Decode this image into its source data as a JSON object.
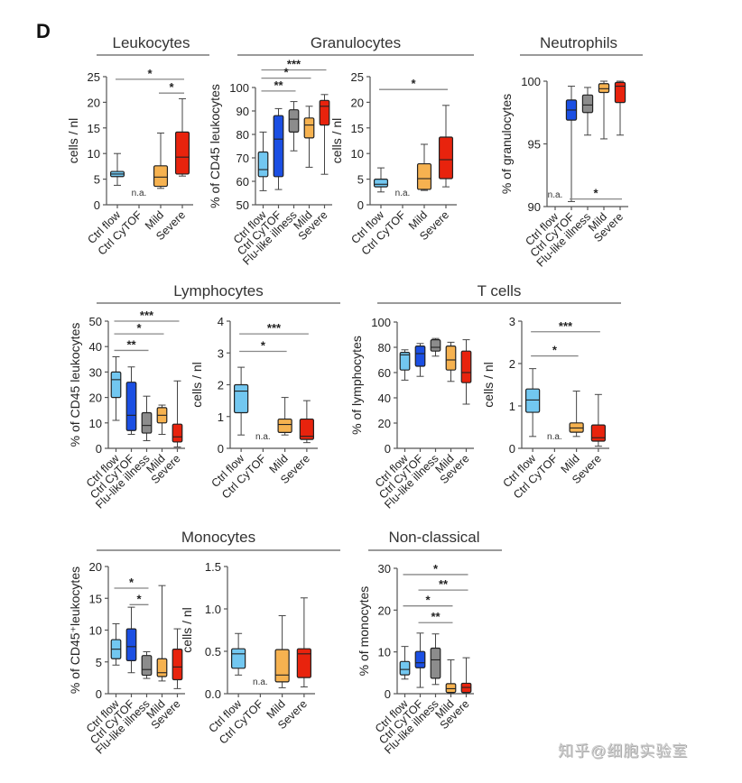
{
  "panel_label": "D",
  "watermark": "知乎@细胞实验室",
  "colors": {
    "Ctrl flow": "#72c7f0",
    "Ctrl CyTOF": "#1b4fe3",
    "Flu-like illness": "#8c8c8c",
    "Mild": "#f6b250",
    "Severe": "#e8230d",
    "axis": "#555555",
    "sig_line": "#888888",
    "rule": "#9a9a9a"
  },
  "groups": [
    {
      "title": "Leukocytes"
    },
    {
      "title": "Granulocytes"
    },
    {
      "title": "Neutrophils"
    },
    {
      "title": "Lymphocytes"
    },
    {
      "title": "T cells"
    },
    {
      "title": "Monocytes"
    },
    {
      "title": "Non-classical"
    }
  ],
  "chart_data": [
    {
      "id": "leuk-count",
      "group": "Leukocytes",
      "type": "box",
      "ylabel": "cells / nl",
      "ylim": [
        0,
        25
      ],
      "yticks": [
        "0",
        "5",
        "10",
        "15",
        "20",
        "25"
      ],
      "categories": [
        "Ctrl flow",
        "Ctrl CyTOF",
        "Mild",
        "Severe"
      ],
      "boxes": [
        {
          "cat": "Ctrl flow",
          "min": 3.8,
          "q1": 5.5,
          "median": 6.0,
          "q3": 6.5,
          "max": 10.0
        },
        {
          "cat": "Ctrl CyTOF",
          "na": "n.a."
        },
        {
          "cat": "Mild",
          "min": 3.2,
          "q1": 3.6,
          "median": 5.4,
          "q3": 7.6,
          "max": 14.0
        },
        {
          "cat": "Severe",
          "min": 5.6,
          "q1": 6.0,
          "median": 9.3,
          "q3": 14.2,
          "max": 20.7
        }
      ],
      "significance": [
        {
          "from": "Ctrl flow",
          "to": "Severe",
          "y": 24.5,
          "label": "*"
        },
        {
          "from": "Mild",
          "to": "Severe",
          "y": 21.8,
          "label": "*"
        }
      ]
    },
    {
      "id": "gran-pct",
      "group": "Granulocytes",
      "type": "box",
      "ylabel": "% of CD45 leukocytes",
      "ylim": [
        50,
        100
      ],
      "yticks": [
        "50",
        "60",
        "70",
        "80",
        "90",
        "100"
      ],
      "categories": [
        "Ctrl flow",
        "Ctrl CyTOF",
        "Flu-like illness",
        "Mild",
        "Severe"
      ],
      "boxes": [
        {
          "cat": "Ctrl flow",
          "min": 56,
          "q1": 62,
          "median": 65,
          "q3": 72.5,
          "max": 81
        },
        {
          "cat": "Ctrl CyTOF",
          "min": 56.5,
          "q1": 62,
          "median": 78,
          "q3": 88,
          "max": 91
        },
        {
          "cat": "Flu-like illness",
          "min": 73,
          "q1": 81,
          "median": 86.5,
          "q3": 90.5,
          "max": 94
        },
        {
          "cat": "Mild",
          "min": 66,
          "q1": 78.5,
          "median": 84,
          "q3": 87,
          "max": 92
        },
        {
          "cat": "Severe",
          "min": 63,
          "q1": 84,
          "median": 92,
          "q3": 94.5,
          "max": 97
        }
      ],
      "significance": [
        {
          "from": "Ctrl flow",
          "to": "Severe",
          "y": 107.5,
          "label": "***"
        },
        {
          "from": "Ctrl flow",
          "to": "Mild",
          "y": 104,
          "label": "*"
        },
        {
          "from": "Ctrl flow",
          "to": "Flu-like illness",
          "y": 98.5,
          "label": "**"
        }
      ]
    },
    {
      "id": "gran-count",
      "group": "Granulocytes",
      "type": "box",
      "ylabel": "cells / nl",
      "ylim": [
        0,
        25
      ],
      "yticks": [
        "0",
        "5",
        "10",
        "15",
        "20",
        "25"
      ],
      "categories": [
        "Ctrl flow",
        "Ctrl CyTOF",
        "Mild",
        "Severe"
      ],
      "boxes": [
        {
          "cat": "Ctrl flow",
          "min": 2.5,
          "q1": 3.5,
          "median": 4.0,
          "q3": 5.0,
          "max": 7.2
        },
        {
          "cat": "Ctrl CyTOF",
          "na": "n.a."
        },
        {
          "cat": "Mild",
          "min": 2.8,
          "q1": 3.0,
          "median": 5.1,
          "q3": 8.0,
          "max": 11.8
        },
        {
          "cat": "Severe",
          "min": 3.5,
          "q1": 5.1,
          "median": 8.8,
          "q3": 13.2,
          "max": 19.4
        }
      ],
      "significance": [
        {
          "from": "Ctrl flow",
          "to": "Severe",
          "y": 22.5,
          "label": "*"
        }
      ]
    },
    {
      "id": "neut-pct",
      "group": "Neutrophils",
      "type": "box",
      "ylabel": "% of granulocytes",
      "ylim": [
        90,
        100
      ],
      "yticks": [
        "90",
        "95",
        "100"
      ],
      "categories": [
        "Ctrl flow",
        "Ctrl CyTOF",
        "Flu-like illness",
        "Mild",
        "Severe"
      ],
      "boxes": [
        {
          "cat": "Ctrl flow",
          "na": "n.a."
        },
        {
          "cat": "Ctrl CyTOF",
          "min": 90.4,
          "q1": 96.9,
          "median": 97.7,
          "q3": 98.5,
          "max": 99.6
        },
        {
          "cat": "Flu-like illness",
          "min": 95.7,
          "q1": 97.5,
          "median": 98.1,
          "q3": 98.9,
          "max": 99.5
        },
        {
          "cat": "Mild",
          "min": 95.4,
          "q1": 99.1,
          "median": 99.4,
          "q3": 99.8,
          "max": 100.0
        },
        {
          "cat": "Severe",
          "min": 95.7,
          "q1": 98.3,
          "median": 99.6,
          "q3": 99.9,
          "max": 100.0
        }
      ],
      "significance": [
        {
          "from": "Ctrl CyTOF",
          "to": "Severe",
          "y": 90.6,
          "label": "*",
          "below": true
        }
      ]
    },
    {
      "id": "lymph-pct",
      "group": "Lymphocytes",
      "type": "box",
      "ylabel": "% of CD45  leukocytes",
      "ylim": [
        0,
        50
      ],
      "yticks": [
        "0",
        "10",
        "20",
        "30",
        "40",
        "50"
      ],
      "categories": [
        "Ctrl flow",
        "Ctrl CyTOF",
        "Flu-like illness",
        "Mild",
        "Severe"
      ],
      "boxes": [
        {
          "cat": "Ctrl flow",
          "min": 11,
          "q1": 20,
          "median": 27,
          "q3": 30,
          "max": 36
        },
        {
          "cat": "Ctrl CyTOF",
          "min": 5.5,
          "q1": 7,
          "median": 13,
          "q3": 26,
          "max": 32
        },
        {
          "cat": "Flu-like illness",
          "min": 3,
          "q1": 6,
          "median": 9,
          "q3": 14,
          "max": 20.5
        },
        {
          "cat": "Mild",
          "min": 5.5,
          "q1": 10,
          "median": 13,
          "q3": 16,
          "max": 17
        },
        {
          "cat": "Severe",
          "min": 0.5,
          "q1": 2.5,
          "median": 4.5,
          "q3": 9.5,
          "max": 26.5
        }
      ],
      "significance": [
        {
          "from": "Ctrl flow",
          "to": "Severe",
          "y": 50,
          "label": "***"
        },
        {
          "from": "Ctrl flow",
          "to": "Mild",
          "y": 45,
          "label": "*"
        },
        {
          "from": "Ctrl flow",
          "to": "Flu-like illness",
          "y": 38.5,
          "label": "**"
        }
      ]
    },
    {
      "id": "lymph-count",
      "group": "Lymphocytes",
      "type": "box",
      "ylabel": "cells / nl",
      "ylim": [
        0,
        4
      ],
      "yticks": [
        "0",
        "1",
        "2",
        "3",
        "4"
      ],
      "categories": [
        "Ctrl flow",
        "Ctrl CyTOF",
        "Mild",
        "Severe"
      ],
      "boxes": [
        {
          "cat": "Ctrl flow",
          "min": 0.42,
          "q1": 1.12,
          "median": 1.8,
          "q3": 2.0,
          "max": 2.55
        },
        {
          "cat": "Ctrl CyTOF",
          "na": "n.a."
        },
        {
          "cat": "Mild",
          "min": 0.42,
          "q1": 0.5,
          "median": 0.75,
          "q3": 0.92,
          "max": 1.6
        },
        {
          "cat": "Severe",
          "min": 0.18,
          "q1": 0.28,
          "median": 0.38,
          "q3": 0.92,
          "max": 1.5
        }
      ],
      "significance": [
        {
          "from": "Ctrl flow",
          "to": "Severe",
          "y": 3.6,
          "label": "***"
        },
        {
          "from": "Ctrl flow",
          "to": "Mild",
          "y": 3.05,
          "label": "*"
        }
      ]
    },
    {
      "id": "tcell-pct",
      "group": "T cells",
      "type": "box",
      "ylabel": "% of lymphocytes",
      "ylim": [
        0,
        100
      ],
      "yticks": [
        "0",
        "20",
        "40",
        "60",
        "80",
        "100"
      ],
      "categories": [
        "Ctrl flow",
        "Ctrl CyTOF",
        "Flu-like illness",
        "Mild",
        "Severe"
      ],
      "boxes": [
        {
          "cat": "Ctrl flow",
          "min": 54,
          "q1": 62,
          "median": 74,
          "q3": 76,
          "max": 78
        },
        {
          "cat": "Ctrl CyTOF",
          "min": 57,
          "q1": 65,
          "median": 75,
          "q3": 81,
          "max": 83
        },
        {
          "cat": "Flu-like illness",
          "min": 73,
          "q1": 77,
          "median": 80,
          "q3": 86,
          "max": 87
        },
        {
          "cat": "Mild",
          "min": 53,
          "q1": 62,
          "median": 70,
          "q3": 81,
          "max": 84
        },
        {
          "cat": "Severe",
          "min": 35,
          "q1": 52,
          "median": 60,
          "q3": 77,
          "max": 86
        }
      ],
      "significance": []
    },
    {
      "id": "tcell-count",
      "group": "T cells",
      "type": "box",
      "ylabel": "cells / nl",
      "ylim": [
        0,
        3
      ],
      "yticks": [
        "0",
        "1",
        "2",
        "3"
      ],
      "categories": [
        "Ctrl flow",
        "Ctrl CyTOF",
        "Mild",
        "Severe"
      ],
      "boxes": [
        {
          "cat": "Ctrl flow",
          "min": 0.28,
          "q1": 0.85,
          "median": 1.14,
          "q3": 1.4,
          "max": 1.88
        },
        {
          "cat": "Ctrl CyTOF",
          "na": "n.a."
        },
        {
          "cat": "Mild",
          "min": 0.28,
          "q1": 0.38,
          "median": 0.48,
          "q3": 0.6,
          "max": 1.35
        },
        {
          "cat": "Severe",
          "min": 0.05,
          "q1": 0.17,
          "median": 0.25,
          "q3": 0.55,
          "max": 1.27
        }
      ],
      "significance": [
        {
          "from": "Ctrl flow",
          "to": "Severe",
          "y": 2.75,
          "label": "***"
        },
        {
          "from": "Ctrl flow",
          "to": "Mild",
          "y": 2.18,
          "label": "*"
        }
      ]
    },
    {
      "id": "mono-pct",
      "group": "Monocytes",
      "type": "box",
      "ylabel": "% of CD45⁺leukocytes",
      "ylim": [
        0,
        20
      ],
      "yticks": [
        "0",
        "5",
        "10",
        "15",
        "20"
      ],
      "categories": [
        "Ctrl flow",
        "Ctrl CyTOF",
        "Flu-like illness",
        "Mild",
        "Severe"
      ],
      "boxes": [
        {
          "cat": "Ctrl flow",
          "min": 4.5,
          "q1": 5.5,
          "median": 7.0,
          "q3": 8.5,
          "max": 11
        },
        {
          "cat": "Ctrl CyTOF",
          "min": 3.3,
          "q1": 5.2,
          "median": 7.4,
          "q3": 10.2,
          "max": 13.6
        },
        {
          "cat": "Flu-like illness",
          "min": 2.4,
          "q1": 2.9,
          "median": 3.8,
          "q3": 6.0,
          "max": 6.6
        },
        {
          "cat": "Mild",
          "min": 2.0,
          "q1": 2.7,
          "median": 3.3,
          "q3": 5.5,
          "max": 17
        },
        {
          "cat": "Severe",
          "min": 0.8,
          "q1": 2.2,
          "median": 4.2,
          "q3": 7.0,
          "max": 10.2
        }
      ],
      "significance": [
        {
          "from": "Ctrl flow",
          "to": "Flu-like illness",
          "y": 16.6,
          "label": "*"
        },
        {
          "from": "Ctrl CyTOF",
          "to": "Flu-like illness",
          "y": 14,
          "label": "*"
        }
      ]
    },
    {
      "id": "mono-count",
      "group": "Monocytes",
      "type": "box",
      "ylabel": "cells / nl",
      "ylim": [
        0,
        1.5
      ],
      "yticks": [
        "0.0",
        "0.5",
        "1.0",
        "1.5"
      ],
      "categories": [
        "Ctrl flow",
        "Ctrl CyTOF",
        "Mild",
        "Severe"
      ],
      "boxes": [
        {
          "cat": "Ctrl flow",
          "min": 0.22,
          "q1": 0.3,
          "median": 0.47,
          "q3": 0.53,
          "max": 0.71
        },
        {
          "cat": "Ctrl CyTOF",
          "na": "n.a."
        },
        {
          "cat": "Mild",
          "min": 0.07,
          "q1": 0.14,
          "median": 0.22,
          "q3": 0.52,
          "max": 0.92
        },
        {
          "cat": "Severe",
          "min": 0.08,
          "q1": 0.19,
          "median": 0.47,
          "q3": 0.53,
          "max": 1.13
        }
      ],
      "significance": []
    },
    {
      "id": "nonclass-pct",
      "group": "Non-classical",
      "type": "box",
      "ylabel": "% of monocytes",
      "ylim": [
        0,
        30
      ],
      "yticks": [
        "0",
        "10",
        "20",
        "30"
      ],
      "categories": [
        "Ctrl flow",
        "Ctrl CyTOF",
        "Flu-like illness",
        "Mild",
        "Severe"
      ],
      "boxes": [
        {
          "cat": "Ctrl flow",
          "min": 3.5,
          "q1": 4.5,
          "median": 5.8,
          "q3": 7.7,
          "max": 11.3
        },
        {
          "cat": "Ctrl CyTOF",
          "min": 1.5,
          "q1": 6.2,
          "median": 7.4,
          "q3": 10.1,
          "max": 14.5
        },
        {
          "cat": "Flu-like illness",
          "min": 2.2,
          "q1": 3.7,
          "median": 8.1,
          "q3": 10.9,
          "max": 14.3
        },
        {
          "cat": "Mild",
          "min": 0.1,
          "q1": 0.3,
          "median": 1.2,
          "q3": 2.4,
          "max": 8.1
        },
        {
          "cat": "Severe",
          "min": 0.1,
          "q1": 0.3,
          "median": 1.5,
          "q3": 2.5,
          "max": 8.6
        }
      ],
      "significance": [
        {
          "from": "Ctrl flow",
          "to": "Severe",
          "y": 28.5,
          "label": "*"
        },
        {
          "from": "Ctrl CyTOF",
          "to": "Severe",
          "y": 24.8,
          "label": "**"
        },
        {
          "from": "Ctrl flow",
          "to": "Mild",
          "y": 21,
          "label": "*"
        },
        {
          "from": "Ctrl CyTOF",
          "to": "Mild",
          "y": 17,
          "label": "**"
        }
      ]
    }
  ]
}
